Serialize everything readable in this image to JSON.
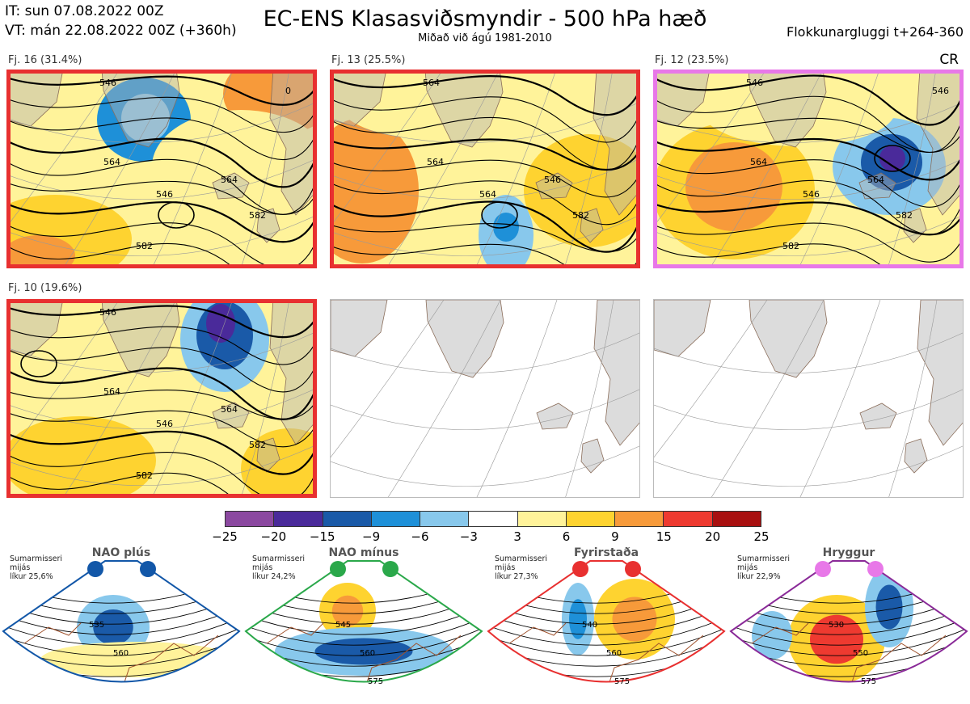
{
  "header": {
    "init_time": "IT: sun 07.08.2022 00Z",
    "valid_time": "VT: mán 22.08.2022 00Z  (+360h)",
    "title": "EC-ENS Klasasviðsmyndir - 500 hPa hæð",
    "subtitle": "Miðað við ágú 1981-2010",
    "window": "Flokkunargluggi t+264-360",
    "cr": "CR"
  },
  "chart_data": [
    {
      "type": "heatmap",
      "title": "Fj. 16 (31.4%)",
      "frame_color": "#e83030",
      "contour_labels": [
        "546",
        "546",
        "564",
        "564",
        "582",
        "582",
        "0"
      ],
      "anomaly_blobs": [
        {
          "sign": "negative",
          "value": -9,
          "region": "greenland-sea"
        },
        {
          "sign": "positive",
          "value": 9,
          "region": "norway"
        },
        {
          "sign": "positive",
          "value": 6,
          "region": "atlantic-sw"
        }
      ]
    },
    {
      "type": "heatmap",
      "title": "Fj. 13 (25.5%)",
      "frame_color": "#e83030",
      "contour_labels": [
        "564",
        "564",
        "564",
        "546",
        "582"
      ],
      "anomaly_blobs": [
        {
          "sign": "positive",
          "value": 9,
          "region": "labrador"
        },
        {
          "sign": "negative",
          "value": -9,
          "region": "atlantic-central"
        },
        {
          "sign": "positive",
          "value": 6,
          "region": "europe"
        }
      ]
    },
    {
      "type": "heatmap",
      "title": "Fj. 12 (23.5%)",
      "frame_color": "#e878e8",
      "contour_labels": [
        "546",
        "546",
        "564",
        "564",
        "582",
        "582",
        "546"
      ],
      "anomaly_blobs": [
        {
          "sign": "positive",
          "value": 9,
          "region": "greenland"
        },
        {
          "sign": "negative",
          "value": -15,
          "region": "scandinavia"
        }
      ]
    },
    {
      "type": "heatmap",
      "title": "Fj. 10 (19.6%)",
      "frame_color": "#e83030",
      "contour_labels": [
        "546",
        "546",
        "564",
        "564",
        "582",
        "582"
      ],
      "anomaly_blobs": [
        {
          "sign": "negative",
          "value": -15,
          "region": "norwegian-sea"
        },
        {
          "sign": "positive",
          "value": 6,
          "region": "atlantic"
        }
      ]
    },
    {
      "type": "heatmap",
      "title": "colorbar",
      "values": [
        -25,
        -20,
        -15,
        -9,
        -6,
        -3,
        3,
        6,
        9,
        15,
        20,
        25
      ],
      "colors": [
        "#8b48a0",
        "#4a2a9a",
        "#1a5aa8",
        "#1e90d8",
        "#88c8ec",
        "#ffffff",
        "#fff39a",
        "#fed330",
        "#f79a3a",
        "#ee3a30",
        "#a81010"
      ]
    }
  ],
  "regimes": [
    {
      "name": "NAO plús",
      "info": [
        "Sumarmisseri",
        "mijás",
        "líkur 25,6%"
      ],
      "color": "#1257a8",
      "dot_color": "#1257a8",
      "labels": [
        "535",
        "560"
      ]
    },
    {
      "name": "NAO mínus",
      "info": [
        "Sumarmisseri",
        "mijás",
        "líkur 24,2%"
      ],
      "color": "#2aa84a",
      "dot_color": "#2aa84a",
      "labels": [
        "545",
        "560",
        "575"
      ]
    },
    {
      "name": "Fyrirstaða",
      "info": [
        "Sumarmisseri",
        "mijás",
        "líkur 27,3%"
      ],
      "color": "#e83030",
      "dot_color": "#e83030",
      "labels": [
        "540",
        "560",
        "575"
      ]
    },
    {
      "name": "Hryggur",
      "info": [
        "Sumarmisseri",
        "mijás",
        "líkur 22,9%"
      ],
      "color": "#8a2a98",
      "dot_color": "#e878e8",
      "labels": [
        "530",
        "550",
        "575"
      ]
    }
  ]
}
